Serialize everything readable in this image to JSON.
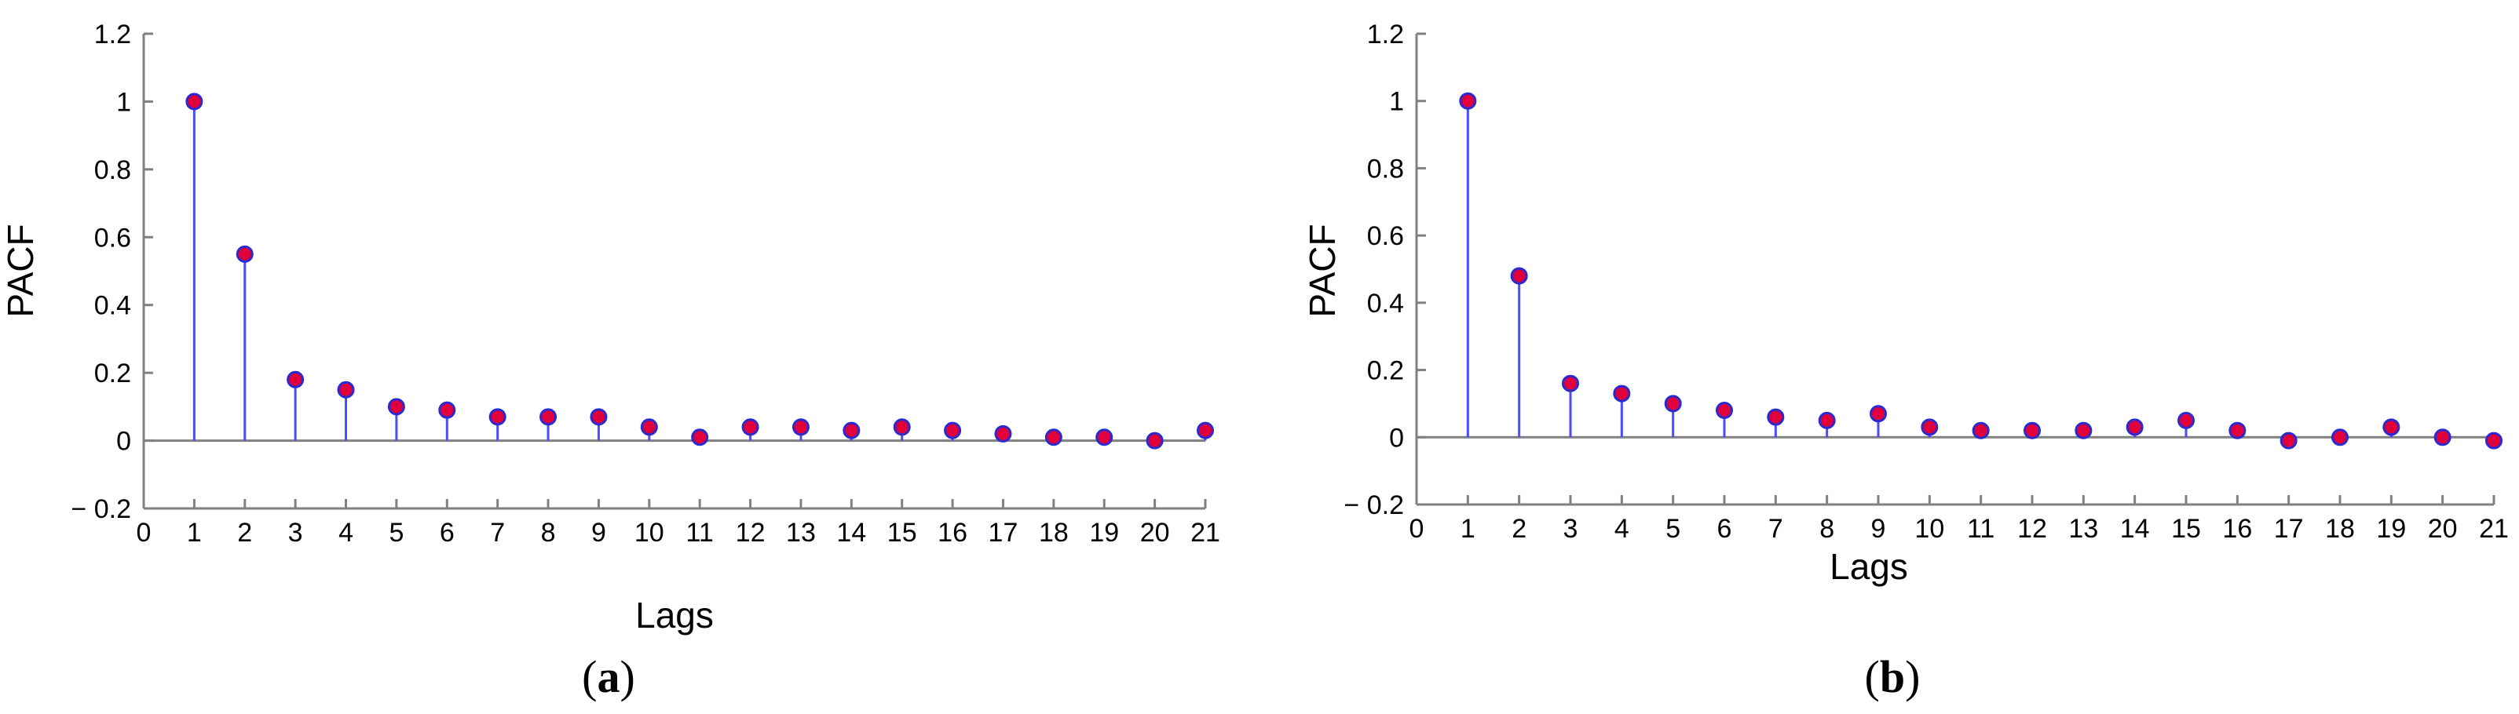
{
  "chart_data": [
    {
      "type": "stem",
      "caption": "(a)",
      "caption_letter": "a",
      "xlabel": "Lags",
      "ylabel": "PACF",
      "xlim": [
        0,
        21
      ],
      "ylim": [
        -0.2,
        1.2
      ],
      "x_ticks": [
        0,
        1,
        2,
        3,
        4,
        5,
        6,
        7,
        8,
        9,
        10,
        11,
        12,
        13,
        14,
        15,
        16,
        17,
        18,
        19,
        20,
        21
      ],
      "y_ticks": [
        -0.2,
        0,
        0.2,
        0.4,
        0.6,
        0.8,
        1,
        1.2
      ],
      "y_tick_labels": [
        "− 0.2",
        "0",
        "0.2",
        "0.4",
        "0.6",
        "0.8",
        "1",
        "1.2"
      ],
      "x": [
        1,
        2,
        3,
        4,
        5,
        6,
        7,
        8,
        9,
        10,
        11,
        12,
        13,
        14,
        15,
        16,
        17,
        18,
        19,
        20,
        21
      ],
      "values": [
        1.0,
        0.55,
        0.18,
        0.15,
        0.1,
        0.09,
        0.07,
        0.07,
        0.07,
        0.04,
        0.01,
        0.04,
        0.04,
        0.03,
        0.04,
        0.03,
        0.02,
        0.01,
        0.01,
        0.0,
        0.03
      ],
      "stem_color": "#4b4bff",
      "marker_color": "#e0003c",
      "marker_edge": "#2a2ad0",
      "zero_line_color": "#808080",
      "grid": false
    },
    {
      "type": "stem",
      "caption": "(b)",
      "caption_letter": "b",
      "xlabel": "Lags",
      "ylabel": "PACF",
      "xlim": [
        0,
        21
      ],
      "ylim": [
        -0.2,
        1.2
      ],
      "x_ticks": [
        0,
        1,
        2,
        3,
        4,
        5,
        6,
        7,
        8,
        9,
        10,
        11,
        12,
        13,
        14,
        15,
        16,
        17,
        18,
        19,
        20,
        21
      ],
      "y_ticks": [
        -0.2,
        0,
        0.2,
        0.4,
        0.6,
        0.8,
        1,
        1.2
      ],
      "y_tick_labels": [
        "− 0.2",
        "0",
        "0.2",
        "0.4",
        "0.6",
        "0.8",
        "1",
        "1.2"
      ],
      "x": [
        1,
        2,
        3,
        4,
        5,
        6,
        7,
        8,
        9,
        10,
        11,
        12,
        13,
        14,
        15,
        16,
        17,
        18,
        19,
        20,
        21
      ],
      "values": [
        1.0,
        0.48,
        0.16,
        0.13,
        0.1,
        0.08,
        0.06,
        0.05,
        0.07,
        0.03,
        0.02,
        0.02,
        0.02,
        0.03,
        0.05,
        0.02,
        -0.01,
        0.0,
        0.03,
        0.0,
        -0.01
      ],
      "stem_color": "#4b4bff",
      "marker_color": "#e0003c",
      "marker_edge": "#2a2ad0",
      "zero_line_color": "#808080",
      "grid": false
    }
  ]
}
